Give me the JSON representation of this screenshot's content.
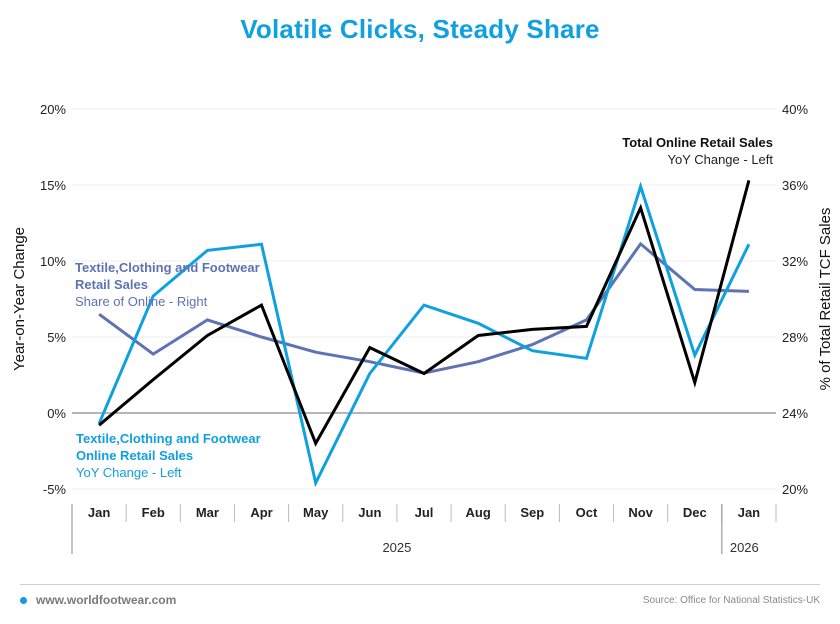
{
  "title": "Volatile Clicks, Steady Share",
  "footer": {
    "website": "www.worldfootwear.com",
    "source": "Source: Office for National Statistics-UK"
  },
  "colors": {
    "title": "#0fa0e0",
    "total_online": "#000000",
    "tcf_online": "#0fa0e0",
    "tcf_share": "#5f72b4"
  },
  "chart_data": {
    "type": "line",
    "title": "Volatile Clicks, Steady Share",
    "ylabel_left": "Year-on-Year Change",
    "ylabel_right": "% of Total Retail TCF Sales",
    "categories": [
      "Jan",
      "Feb",
      "Mar",
      "Apr",
      "May",
      "Jun",
      "Jul",
      "Aug",
      "Sep",
      "Oct",
      "Nov",
      "Dec",
      "Jan"
    ],
    "year_groups": [
      {
        "label": "2025",
        "count": 12
      },
      {
        "label": "2026",
        "count": 1
      }
    ],
    "ylim_left": [
      -5,
      20
    ],
    "yticks_left": [
      -5,
      0,
      5,
      10,
      15,
      20
    ],
    "ytick_labels_left": [
      "-5%",
      "0%",
      "5%",
      "10%",
      "15%",
      "20%"
    ],
    "ylim_right": [
      20,
      40
    ],
    "yticks_right": [
      20,
      24,
      28,
      32,
      36,
      40
    ],
    "ytick_labels_right": [
      "20%",
      "24%",
      "28%",
      "32%",
      "36%",
      "40%"
    ],
    "grid": true,
    "series": [
      {
        "name": "Total Online Retail Sales",
        "sublabel": "YoY Change - Left",
        "axis": "left",
        "color": "#000000",
        "values": [
          -0.8,
          2.2,
          5.1,
          7.1,
          -2.0,
          4.3,
          2.6,
          5.1,
          5.5,
          5.7,
          13.5,
          2.0,
          15.3
        ]
      },
      {
        "name": "Textile,Clothing and Footwear Online Retail Sales",
        "name_lines": [
          "Textile,Clothing and Footwear",
          "Online Retail Sales"
        ],
        "sublabel": "YoY Change - Left",
        "axis": "left",
        "color": "#0fa0e0",
        "values": [
          -0.7,
          7.7,
          10.7,
          11.1,
          -4.6,
          2.6,
          7.1,
          5.9,
          4.1,
          3.6,
          14.9,
          3.8,
          11.1
        ]
      },
      {
        "name": "Textile,Clothing and Footwear Retail Sales",
        "name_lines": [
          "Textile,Clothing and Footwear",
          "Retail Sales"
        ],
        "sublabel": "Share of Online - Right",
        "axis": "right",
        "color": "#5f72b4",
        "values": [
          29.2,
          27.1,
          28.9,
          28.0,
          27.2,
          26.7,
          26.1,
          26.7,
          27.6,
          28.9,
          32.9,
          30.5,
          30.4
        ]
      }
    ]
  }
}
